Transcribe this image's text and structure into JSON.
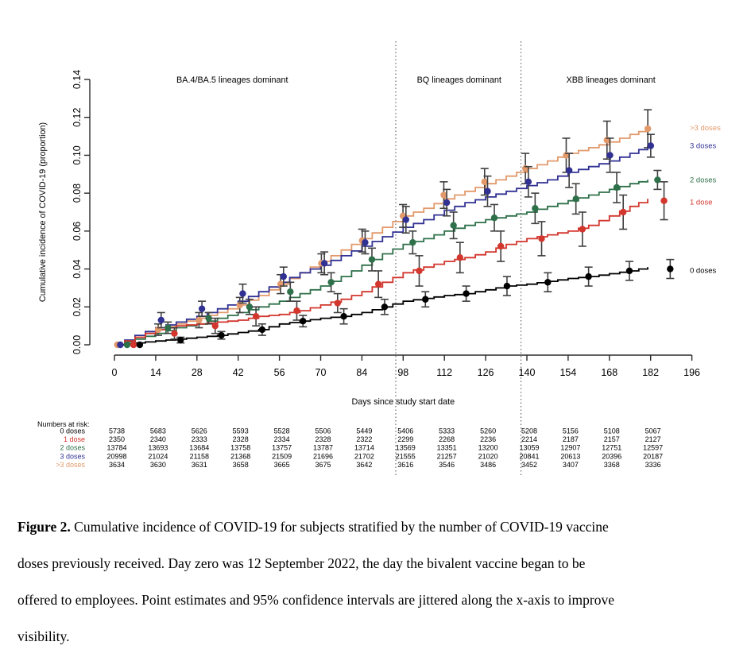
{
  "chart_data": {
    "type": "line",
    "title": "",
    "xlabel": "Days since study start date",
    "ylabel": "Cumulative incidence of COVID-19 (proportion)",
    "xlim": [
      0,
      196
    ],
    "ylim": [
      0,
      0.14
    ],
    "x_ticks": [
      0,
      14,
      28,
      42,
      56,
      70,
      84,
      98,
      112,
      126,
      140,
      154,
      168,
      182,
      196
    ],
    "y_ticks": [
      "0.00",
      "0.02",
      "0.04",
      "0.06",
      "0.08",
      "0.10",
      "0.12",
      "0.14"
    ],
    "grid": false,
    "legend_position": "right-margin",
    "period_labels": [
      {
        "text": "BA.4/BA.5 lineages dominant",
        "center_day": 40
      },
      {
        "text": "BQ lineages dominant",
        "center_day": 117
      },
      {
        "text": "XBB lineages dominant",
        "center_day": 168.5
      }
    ],
    "divider_days": [
      95.5,
      138
    ],
    "point_spacing_days": 13.85,
    "series": [
      {
        "name": ">3 doses",
        "color": "#E2996B",
        "legend_anchor": 0.1145,
        "curve": [
          [
            0,
            0
          ],
          [
            7,
            0.004
          ],
          [
            14,
            0.008
          ],
          [
            21,
            0.011
          ],
          [
            28,
            0.014
          ],
          [
            35,
            0.017
          ],
          [
            42,
            0.021
          ],
          [
            49,
            0.026
          ],
          [
            56,
            0.032
          ],
          [
            63,
            0.038
          ],
          [
            70,
            0.044
          ],
          [
            77,
            0.05
          ],
          [
            84,
            0.056
          ],
          [
            91,
            0.062
          ],
          [
            98,
            0.068
          ],
          [
            105,
            0.072
          ],
          [
            112,
            0.077
          ],
          [
            119,
            0.081
          ],
          [
            126,
            0.085
          ],
          [
            133,
            0.089
          ],
          [
            140,
            0.093
          ],
          [
            147,
            0.097
          ],
          [
            154,
            0.101
          ],
          [
            161,
            0.104
          ],
          [
            168,
            0.107
          ],
          [
            175,
            0.111
          ],
          [
            181,
            0.114
          ]
        ],
        "jitter_offset": 1.0,
        "point_values": [
          0,
          0.008,
          0.013,
          0.021,
          0.032,
          0.043,
          0.055,
          0.068,
          0.079,
          0.086,
          0.093,
          0.1,
          0.108,
          0.114
        ],
        "ci_half": [
          0,
          0.003,
          0.004,
          0.004,
          0.005,
          0.005,
          0.006,
          0.006,
          0.007,
          0.007,
          0.008,
          0.009,
          0.01,
          0.01
        ]
      },
      {
        "name": "3 doses",
        "color": "#313194",
        "legend_anchor": 0.105,
        "curve": [
          [
            0,
            0
          ],
          [
            7,
            0.005
          ],
          [
            14,
            0.009
          ],
          [
            21,
            0.012
          ],
          [
            28,
            0.015
          ],
          [
            35,
            0.019
          ],
          [
            42,
            0.023
          ],
          [
            49,
            0.028
          ],
          [
            56,
            0.033
          ],
          [
            63,
            0.038
          ],
          [
            70,
            0.042
          ],
          [
            77,
            0.047
          ],
          [
            84,
            0.052
          ],
          [
            91,
            0.057
          ],
          [
            98,
            0.062
          ],
          [
            105,
            0.066
          ],
          [
            112,
            0.071
          ],
          [
            119,
            0.075
          ],
          [
            126,
            0.078
          ],
          [
            133,
            0.081
          ],
          [
            140,
            0.084
          ],
          [
            147,
            0.087
          ],
          [
            154,
            0.091
          ],
          [
            161,
            0.094
          ],
          [
            168,
            0.097
          ],
          [
            175,
            0.101
          ],
          [
            181,
            0.105
          ]
        ],
        "jitter_offset": 2.0,
        "point_values": [
          0,
          0.013,
          0.019,
          0.027,
          0.036,
          0.043,
          0.054,
          0.066,
          0.075,
          0.081,
          0.086,
          0.092,
          0.1,
          0.105
        ],
        "ci_half": [
          0,
          0.004,
          0.004,
          0.005,
          0.005,
          0.006,
          0.006,
          0.007,
          0.007,
          0.008,
          0.008,
          0.009,
          0.009,
          0.006
        ]
      },
      {
        "name": "2 doses",
        "color": "#2E7049",
        "legend_anchor": 0.087,
        "curve": [
          [
            0,
            0
          ],
          [
            7,
            0.003
          ],
          [
            14,
            0.006
          ],
          [
            21,
            0.009
          ],
          [
            28,
            0.011
          ],
          [
            35,
            0.014
          ],
          [
            42,
            0.017
          ],
          [
            49,
            0.02
          ],
          [
            56,
            0.023
          ],
          [
            63,
            0.027
          ],
          [
            70,
            0.031
          ],
          [
            77,
            0.036
          ],
          [
            84,
            0.042
          ],
          [
            91,
            0.048
          ],
          [
            98,
            0.053
          ],
          [
            105,
            0.056
          ],
          [
            112,
            0.06
          ],
          [
            119,
            0.063
          ],
          [
            126,
            0.066
          ],
          [
            133,
            0.068
          ],
          [
            140,
            0.07
          ],
          [
            147,
            0.073
          ],
          [
            154,
            0.076
          ],
          [
            161,
            0.079
          ],
          [
            168,
            0.082
          ],
          [
            175,
            0.085
          ],
          [
            181,
            0.087
          ]
        ],
        "jitter_offset": 4.3,
        "point_values": [
          0,
          0.009,
          0.014,
          0.02,
          0.028,
          0.033,
          0.045,
          0.054,
          0.063,
          0.067,
          0.072,
          0.077,
          0.083,
          0.087
        ],
        "ci_half": [
          0,
          0.003,
          0.003,
          0.004,
          0.005,
          0.005,
          0.006,
          0.006,
          0.007,
          0.007,
          0.008,
          0.008,
          0.008,
          0.005
        ]
      },
      {
        "name": "1 dose",
        "color": "#D2362D",
        "legend_anchor": 0.0752,
        "curve": [
          [
            0,
            0
          ],
          [
            7,
            0.004
          ],
          [
            14,
            0.008
          ],
          [
            21,
            0.01
          ],
          [
            28,
            0.011
          ],
          [
            35,
            0.012
          ],
          [
            42,
            0.013
          ],
          [
            49,
            0.015
          ],
          [
            56,
            0.016
          ],
          [
            63,
            0.018
          ],
          [
            70,
            0.021
          ],
          [
            77,
            0.024
          ],
          [
            84,
            0.028
          ],
          [
            91,
            0.033
          ],
          [
            98,
            0.038
          ],
          [
            105,
            0.041
          ],
          [
            112,
            0.044
          ],
          [
            119,
            0.046
          ],
          [
            126,
            0.049
          ],
          [
            133,
            0.053
          ],
          [
            140,
            0.056
          ],
          [
            147,
            0.058
          ],
          [
            154,
            0.06
          ],
          [
            161,
            0.063
          ],
          [
            168,
            0.068
          ],
          [
            175,
            0.073
          ],
          [
            181,
            0.077
          ]
        ],
        "jitter_offset": 6.5,
        "point_values": [
          0,
          0.006,
          0.01,
          0.015,
          0.018,
          0.022,
          0.032,
          0.039,
          0.046,
          0.052,
          0.056,
          0.061,
          0.07,
          0.076
        ],
        "ci_half": [
          0,
          0.003,
          0.004,
          0.005,
          0.005,
          0.005,
          0.007,
          0.008,
          0.008,
          0.008,
          0.009,
          0.009,
          0.009,
          0.01
        ]
      },
      {
        "name": "0 doses",
        "color": "#000000",
        "legend_anchor": 0.0392,
        "curve": [
          [
            0,
            0
          ],
          [
            7,
            0.001
          ],
          [
            14,
            0.002
          ],
          [
            21,
            0.003
          ],
          [
            28,
            0.004
          ],
          [
            35,
            0.005
          ],
          [
            42,
            0.0065
          ],
          [
            49,
            0.008
          ],
          [
            56,
            0.011
          ],
          [
            63,
            0.0125
          ],
          [
            70,
            0.014
          ],
          [
            77,
            0.015
          ],
          [
            84,
            0.017
          ],
          [
            91,
            0.02
          ],
          [
            98,
            0.023
          ],
          [
            105,
            0.0245
          ],
          [
            112,
            0.026
          ],
          [
            119,
            0.027
          ],
          [
            126,
            0.029
          ],
          [
            133,
            0.031
          ],
          [
            140,
            0.032
          ],
          [
            147,
            0.0335
          ],
          [
            154,
            0.035
          ],
          [
            161,
            0.036
          ],
          [
            168,
            0.0375
          ],
          [
            175,
            0.039
          ],
          [
            181,
            0.041
          ]
        ],
        "jitter_offset": 8.6,
        "point_values": [
          0,
          0.0025,
          0.005,
          0.008,
          0.0125,
          0.015,
          0.02,
          0.024,
          0.027,
          0.031,
          0.033,
          0.036,
          0.039,
          0.04
        ],
        "ci_half": [
          0,
          0.0015,
          0.002,
          0.003,
          0.003,
          0.004,
          0.004,
          0.004,
          0.004,
          0.005,
          0.005,
          0.005,
          0.005,
          0.005
        ]
      }
    ],
    "at_risk": {
      "title": "Numbers at risk:",
      "column_days": [
        0,
        14,
        28,
        42,
        56,
        70,
        84,
        98,
        112,
        126,
        140,
        154,
        168,
        182
      ],
      "rows": [
        {
          "label": "0 doses",
          "color": "#000000",
          "values": [
            5738,
            5683,
            5626,
            5593,
            5528,
            5506,
            5449,
            5406,
            5333,
            5260,
            5208,
            5156,
            5108,
            5067
          ]
        },
        {
          "label": "1 dose",
          "color": "#D2362D",
          "values": [
            2350,
            2340,
            2333,
            2328,
            2334,
            2328,
            2322,
            2299,
            2268,
            2236,
            2214,
            2187,
            2157,
            2127
          ]
        },
        {
          "label": "2 doses",
          "color": "#2E7049",
          "values": [
            13784,
            13693,
            13684,
            13758,
            13757,
            13787,
            13714,
            13569,
            13351,
            13200,
            13059,
            12907,
            12751,
            12597
          ]
        },
        {
          "label": "3 doses",
          "color": "#313194",
          "values": [
            20998,
            21024,
            21158,
            21368,
            21509,
            21696,
            21702,
            21555,
            21257,
            21020,
            20841,
            20613,
            20396,
            20187
          ]
        },
        {
          "label": ">3 doses",
          "color": "#E2996B",
          "values": [
            3634,
            3630,
            3631,
            3658,
            3665,
            3675,
            3642,
            3616,
            3546,
            3486,
            3452,
            3407,
            3368,
            3336
          ]
        }
      ]
    },
    "ci_color": "#3F3F3F"
  },
  "caption": {
    "label": "Figure 2.",
    "lines": [
      "Cumulative incidence of COVID-19 for subjects stratified by the number of COVID-19 vaccine",
      "doses previously received. Day zero was 12 September 2022, the day the bivalent vaccine began to be",
      "offered to employees. Point estimates and 95% confidence intervals are jittered along the x-axis to improve",
      "visibility."
    ]
  }
}
